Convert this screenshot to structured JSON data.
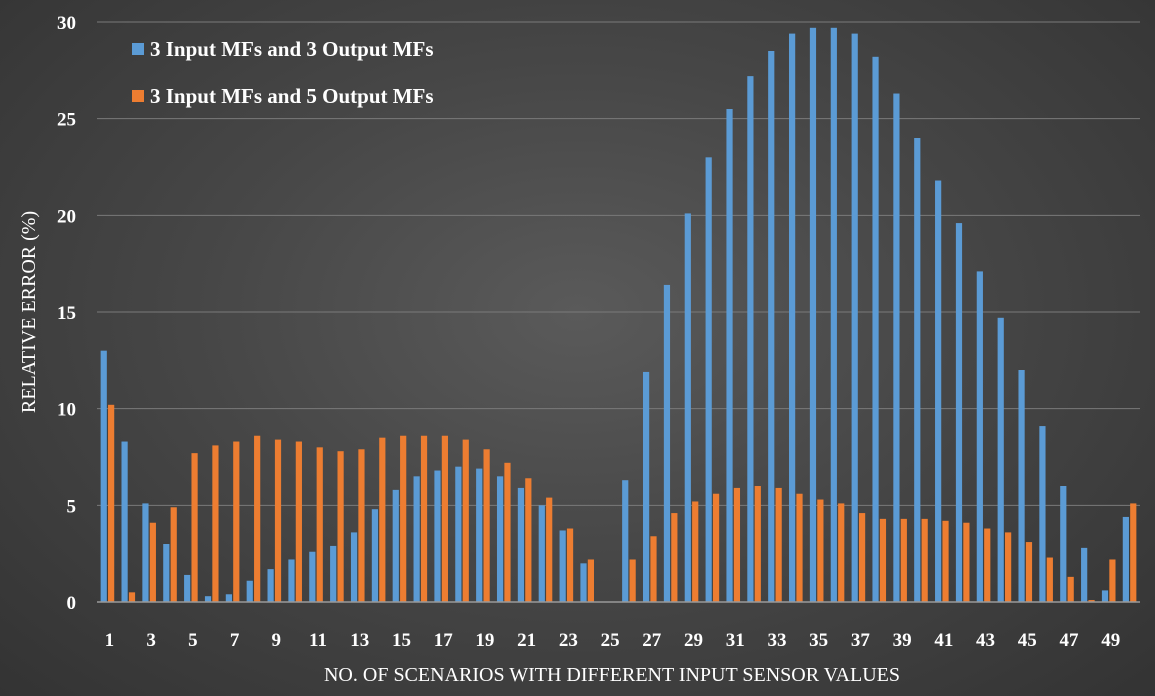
{
  "chart_data": {
    "type": "bar",
    "title": "",
    "xlabel": "NO. OF SCENARIOS WITH DIFFERENT INPUT SENSOR VALUES",
    "ylabel": "RELATIVE ERROR (%)",
    "ylim": [
      0,
      30
    ],
    "yticks": [
      "0",
      "5",
      "10",
      "15",
      "20",
      "25",
      "30"
    ],
    "grid": true,
    "legend_position": "top-left",
    "categories": [
      "1",
      "2",
      "3",
      "4",
      "5",
      "6",
      "7",
      "8",
      "9",
      "10",
      "11",
      "12",
      "13",
      "14",
      "15",
      "16",
      "17",
      "18",
      "19",
      "20",
      "21",
      "22",
      "23",
      "24",
      "25",
      "26",
      "27",
      "28",
      "29",
      "30",
      "31",
      "32",
      "33",
      "34",
      "35",
      "36",
      "37",
      "38",
      "39",
      "40",
      "41",
      "42",
      "43",
      "44",
      "45",
      "46",
      "47",
      "48",
      "49",
      "50"
    ],
    "xtick_labels": [
      "1",
      "3",
      "5",
      "7",
      "9",
      "11",
      "13",
      "15",
      "17",
      "19",
      "21",
      "23",
      "25",
      "27",
      "29",
      "31",
      "33",
      "35",
      "37",
      "39",
      "41",
      "43",
      "45",
      "47",
      "49"
    ],
    "series": [
      {
        "name": "3 Input MFs and 3 Output MFs",
        "color": "#5b9bd5",
        "values": [
          13.0,
          8.3,
          5.1,
          3.0,
          1.4,
          0.3,
          0.4,
          1.1,
          1.7,
          2.2,
          2.6,
          2.9,
          3.6,
          4.8,
          5.8,
          6.5,
          6.8,
          7.0,
          6.9,
          6.5,
          5.9,
          5.0,
          3.7,
          2.0,
          0.0,
          6.3,
          11.9,
          16.4,
          20.1,
          23.0,
          25.5,
          27.2,
          28.5,
          29.4,
          29.7,
          29.7,
          29.4,
          28.2,
          26.3,
          24.0,
          21.8,
          19.6,
          17.1,
          14.7,
          12.0,
          9.1,
          6.0,
          2.8,
          0.6,
          4.4
        ]
      },
      {
        "name": "3 Input MFs and 5 Output MFs",
        "color": "#ed7d31",
        "values": [
          10.2,
          0.5,
          4.1,
          4.9,
          7.7,
          8.1,
          8.3,
          8.6,
          8.4,
          8.3,
          8.0,
          7.8,
          7.9,
          8.5,
          8.6,
          8.6,
          8.6,
          8.4,
          7.9,
          7.2,
          6.4,
          5.4,
          3.8,
          2.2,
          0.0,
          2.2,
          3.4,
          4.6,
          5.2,
          5.6,
          5.9,
          6.0,
          5.9,
          5.6,
          5.3,
          5.1,
          4.6,
          4.3,
          4.3,
          4.3,
          4.2,
          4.1,
          3.8,
          3.6,
          3.1,
          2.3,
          1.3,
          0.1,
          2.2,
          5.1
        ]
      }
    ]
  }
}
